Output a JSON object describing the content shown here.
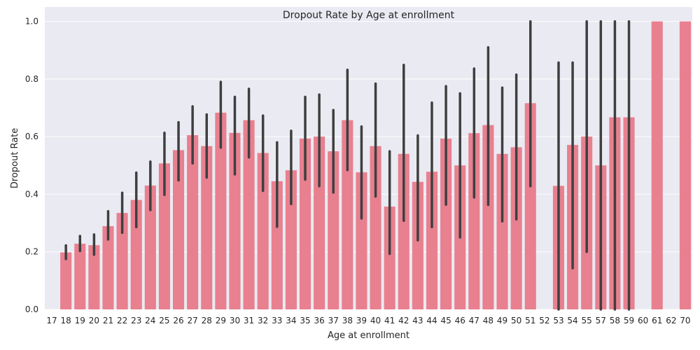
{
  "chart_data": {
    "type": "bar",
    "title": "Dropout Rate by Age at enrollment",
    "xlabel": "Age at enrollment",
    "ylabel": "Dropout Rate",
    "ylim": [
      0,
      1.05
    ],
    "yticks": [
      0.0,
      0.2,
      0.4,
      0.6,
      0.8,
      1.0
    ],
    "ytick_labels": [
      "0.0",
      "0.2",
      "0.4",
      "0.6",
      "0.8",
      "1.0"
    ],
    "grid": true,
    "bar_color": "#e8808f",
    "errorbar_color": "#3f3f3f",
    "background_color": "#eaeaf2",
    "categories": [
      "17",
      "18",
      "19",
      "20",
      "21",
      "22",
      "23",
      "24",
      "25",
      "26",
      "27",
      "28",
      "29",
      "30",
      "31",
      "32",
      "33",
      "34",
      "35",
      "36",
      "37",
      "38",
      "39",
      "40",
      "41",
      "42",
      "43",
      "44",
      "45",
      "46",
      "47",
      "48",
      "49",
      "50",
      "51",
      "52",
      "53",
      "54",
      "55",
      "57",
      "58",
      "59",
      "60",
      "61",
      "62",
      "70"
    ],
    "values": [
      0,
      0.198,
      0.228,
      0.223,
      0.289,
      0.335,
      0.38,
      0.43,
      0.507,
      0.553,
      0.605,
      0.567,
      0.683,
      0.613,
      0.657,
      0.543,
      0.445,
      0.483,
      0.593,
      0.6,
      0.549,
      0.657,
      0.476,
      0.567,
      0.357,
      0.54,
      0.443,
      0.478,
      0.593,
      0.5,
      0.612,
      0.64,
      0.54,
      0.563,
      0.716,
      0,
      0.429,
      0.571,
      0.6,
      0.5,
      0.667,
      0.667,
      0,
      1.0,
      0,
      1.0
    ],
    "ci_low": [
      0,
      0.175,
      0.203,
      0.19,
      0.243,
      0.266,
      0.286,
      0.345,
      0.398,
      0.448,
      0.507,
      0.458,
      0.562,
      0.469,
      0.528,
      0.412,
      0.287,
      0.366,
      0.451,
      0.428,
      0.406,
      0.484,
      0.316,
      0.392,
      0.193,
      0.308,
      0.24,
      0.286,
      0.364,
      0.25,
      0.389,
      0.363,
      0.306,
      0.313,
      0.428,
      0,
      0.0,
      0.143,
      0.2,
      0.0,
      0.0,
      0.0,
      0,
      1.0,
      0,
      1.0
    ],
    "ci_high": [
      0,
      0.222,
      0.255,
      0.26,
      0.341,
      0.405,
      0.475,
      0.513,
      0.613,
      0.65,
      0.705,
      0.677,
      0.79,
      0.738,
      0.766,
      0.673,
      0.58,
      0.62,
      0.738,
      0.746,
      0.692,
      0.832,
      0.635,
      0.784,
      0.549,
      0.849,
      0.604,
      0.718,
      0.775,
      0.75,
      0.836,
      0.91,
      0.77,
      0.815,
      1.0,
      0,
      0.857,
      0.857,
      1.0,
      1.0,
      1.0,
      1.0,
      0,
      1.0,
      0,
      1.0
    ]
  }
}
